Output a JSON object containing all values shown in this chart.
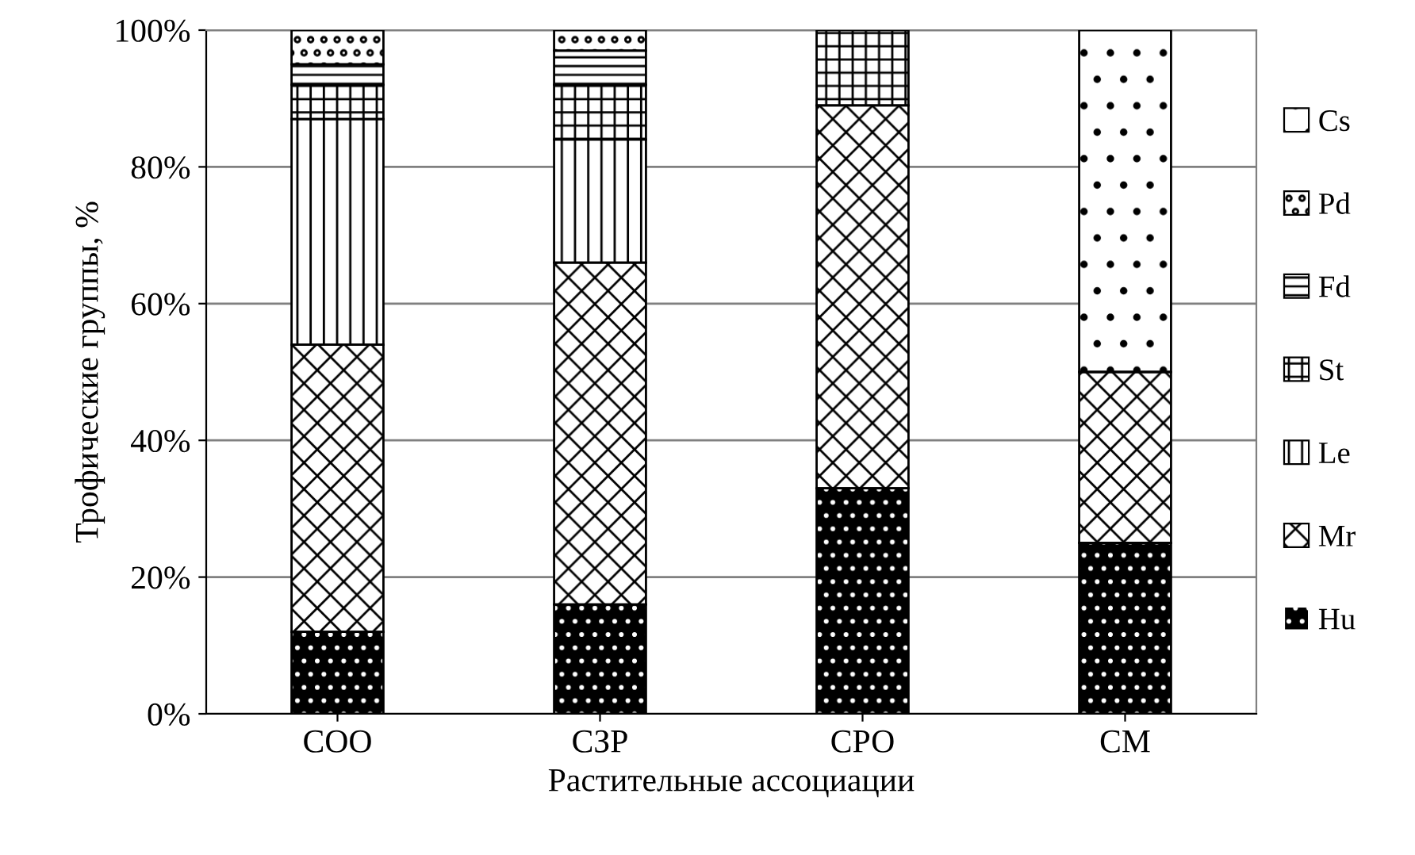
{
  "chart_data": {
    "type": "bar",
    "stacked": true,
    "xlabel": "Растительные ассоциации",
    "ylabel": "Трофические группы, %",
    "categories": [
      "СОО",
      "СЗР",
      "СРО",
      "СМ"
    ],
    "series": [
      {
        "name": "Hu",
        "color": "#000000",
        "values": [
          12,
          16,
          33,
          25
        ]
      },
      {
        "name": "Mr",
        "color": "#ffffff",
        "values": [
          42,
          50,
          56,
          25
        ]
      },
      {
        "name": "Le",
        "color": "#ffffff",
        "values": [
          33,
          18,
          0,
          0
        ]
      },
      {
        "name": "St",
        "color": "#ffffff",
        "values": [
          5,
          8,
          11,
          0
        ]
      },
      {
        "name": "Fd",
        "color": "#ffffff",
        "values": [
          3,
          5,
          0,
          0
        ]
      },
      {
        "name": "Pd",
        "color": "#ffffff",
        "values": [
          5,
          3,
          0,
          0
        ]
      },
      {
        "name": "Cs",
        "color": "#ffffff",
        "values": [
          0,
          0,
          0,
          50
        ]
      }
    ],
    "ylim": [
      0,
      100
    ],
    "yticks": [
      {
        "value": 0,
        "label": "0%"
      },
      {
        "value": 20,
        "label": "20%"
      },
      {
        "value": 40,
        "label": "40%"
      },
      {
        "value": 60,
        "label": "60%"
      },
      {
        "value": 80,
        "label": "80%"
      },
      {
        "value": 100,
        "label": "100%"
      }
    ],
    "grid": "y",
    "legend": "right"
  }
}
